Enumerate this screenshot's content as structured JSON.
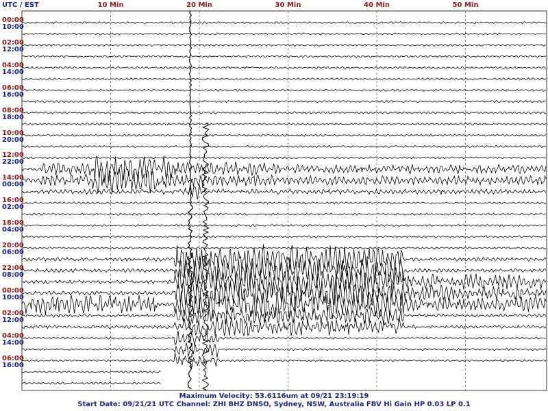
{
  "header": {
    "utc_label": "UTC",
    "separator": " / ",
    "est_label": "EST",
    "minute_ticks": [
      "10 Min",
      "20 Min",
      "30 Min",
      "40 Min",
      "50 Min"
    ]
  },
  "rows": [
    {
      "utc": "00:00",
      "est": "10:00"
    },
    {
      "utc": "02:00",
      "est": "12:00"
    },
    {
      "utc": "04:00",
      "est": "14:00"
    },
    {
      "utc": "06:00",
      "est": "16:00"
    },
    {
      "utc": "08:00",
      "est": "18:00"
    },
    {
      "utc": "10:00",
      "est": "20:00"
    },
    {
      "utc": "12:00",
      "est": "22:00"
    },
    {
      "utc": "14:00",
      "est": "00:00"
    },
    {
      "utc": "16:00",
      "est": "02:00"
    },
    {
      "utc": "18:00",
      "est": "04:00"
    },
    {
      "utc": "20:00",
      "est": "06:00"
    },
    {
      "utc": "22:00",
      "est": "08:00"
    },
    {
      "utc": "00:00",
      "est": "10:00"
    },
    {
      "utc": "02:00",
      "est": "12:00"
    },
    {
      "utc": "04:00",
      "est": "14:00"
    },
    {
      "utc": "06:00",
      "est": "16:00"
    }
  ],
  "footer": {
    "max_velocity": "Maximum Velocity: 53.6116um at 09/21 23:19:19",
    "station_info": "Start Date: 09/21/21 UTC Channel: ZHI  BHZ  DNSO, Sydney, NSW, Australia  FBV Hi Gain HP 0.03  LP 0.1"
  },
  "colors": {
    "trace": "#000000",
    "grid": "#888888",
    "utc_text": "#8b1a1a",
    "est_text": "#1a237e"
  }
}
